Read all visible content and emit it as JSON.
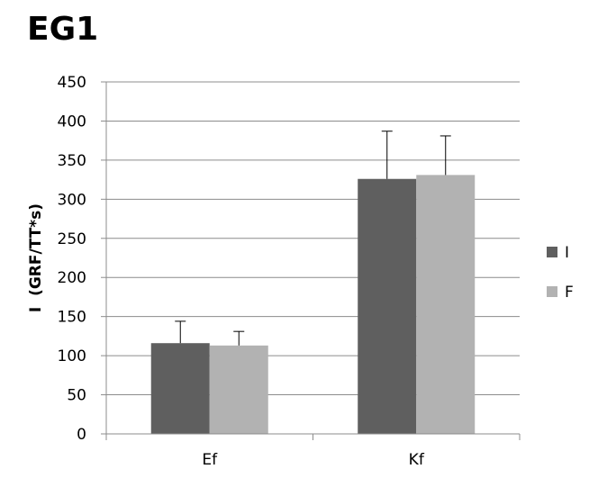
{
  "chart_data": {
    "type": "bar",
    "title": "EG1",
    "xlabel": "",
    "ylabel": "I  (GRF/TT*s)",
    "categories": [
      "Ef",
      "Kf"
    ],
    "ylim": [
      0,
      450
    ],
    "yticks": [
      0,
      50,
      100,
      150,
      200,
      250,
      300,
      350,
      400,
      450
    ],
    "grid": true,
    "legend_position": "right",
    "series": [
      {
        "name": "I",
        "color": "#5f5f5f",
        "values": [
          116,
          326
        ],
        "error": [
          28,
          61
        ]
      },
      {
        "name": "F",
        "color": "#b2b2b2",
        "values": [
          113,
          331
        ],
        "error": [
          18,
          50
        ]
      }
    ]
  }
}
